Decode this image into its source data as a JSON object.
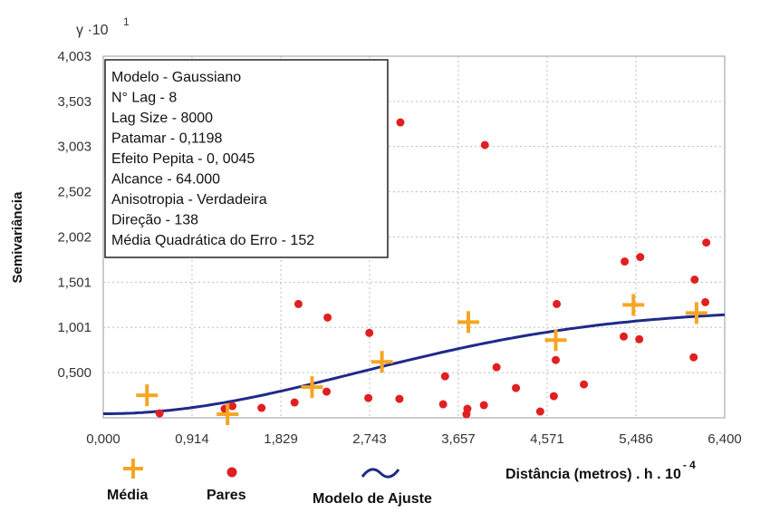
{
  "chart_data": {
    "type": "scatter",
    "ylabel": "Semivariância",
    "y_unit": "γ ·10",
    "y_unit_exp": "1",
    "xlabel": "Distância (metros) . h . 10",
    "x_unit_exp": "- 4",
    "xlim": [
      0,
      6.4
    ],
    "ylim": [
      0,
      4.003
    ],
    "x_ticks": [
      "0,000",
      "0,914",
      "1,829",
      "2,743",
      "3,657",
      "4,571",
      "5,486",
      "6,400"
    ],
    "x_tick_values": [
      0,
      0.914,
      1.829,
      2.743,
      3.657,
      4.571,
      5.486,
      6.4
    ],
    "y_ticks": [
      "0,500",
      "1,001",
      "1,501",
      "2,002",
      "2,502",
      "3,003",
      "3,503",
      "4,003"
    ],
    "y_tick_values": [
      0.5,
      1.001,
      1.501,
      2.002,
      2.502,
      3.003,
      3.503,
      4.003
    ],
    "grid": true,
    "info_box": [
      "Modelo - Gaussiano",
      "N° Lag - 8",
      "Lag Size - 8000",
      "Patamar - 0,1198",
      "Efeito Pepita - 0, 0045",
      "Alcance - 64.000",
      "Anisotropia - Verdadeira",
      "Direção - 138",
      "Média Quadrática do Erro - 152"
    ],
    "legend": [
      {
        "label": "Média",
        "marker": "plus",
        "color": "#f5a623"
      },
      {
        "label": "Pares",
        "marker": "dot",
        "color": "#e02020"
      },
      {
        "label": "Modelo de Ajuste",
        "marker": "wave",
        "color": "#1f2a8a"
      }
    ],
    "series": [
      {
        "name": "Pares",
        "points": [
          [
            0.58,
            0.05
          ],
          [
            1.25,
            0.1
          ],
          [
            1.33,
            0.13
          ],
          [
            1.63,
            0.11
          ],
          [
            1.97,
            0.17
          ],
          [
            2.01,
            1.26
          ],
          [
            2.3,
            0.29
          ],
          [
            2.31,
            1.11
          ],
          [
            2.73,
            0.22
          ],
          [
            2.74,
            0.94
          ],
          [
            3.05,
            0.21
          ],
          [
            3.06,
            3.27
          ],
          [
            3.5,
            0.15
          ],
          [
            3.52,
            0.46
          ],
          [
            3.74,
            0.04
          ],
          [
            3.75,
            0.1
          ],
          [
            3.92,
            0.14
          ],
          [
            3.93,
            3.02
          ],
          [
            4.05,
            0.56
          ],
          [
            4.25,
            0.33
          ],
          [
            4.5,
            0.07
          ],
          [
            4.64,
            0.24
          ],
          [
            4.66,
            0.64
          ],
          [
            4.67,
            1.26
          ],
          [
            4.95,
            0.37
          ],
          [
            5.36,
            0.9
          ],
          [
            5.37,
            1.73
          ],
          [
            5.52,
            0.87
          ],
          [
            5.53,
            1.78
          ],
          [
            6.08,
            0.67
          ],
          [
            6.09,
            1.53
          ],
          [
            6.2,
            1.28
          ],
          [
            6.21,
            1.94
          ]
        ]
      },
      {
        "name": "Média",
        "points": [
          [
            0.45,
            0.25
          ],
          [
            1.28,
            0.04
          ],
          [
            2.15,
            0.34
          ],
          [
            2.87,
            0.62
          ],
          [
            3.76,
            1.06
          ],
          [
            4.66,
            0.86
          ],
          [
            5.46,
            1.25
          ],
          [
            6.11,
            1.16
          ]
        ]
      }
    ],
    "model": {
      "name": "Modelo de Ajuste",
      "type": "gaussian",
      "nugget": 0.045,
      "sill": 1.198,
      "range": 6.4,
      "color": "#1f2a8a"
    },
    "colors": {
      "media": "#f5a623",
      "pares": "#e02020",
      "model": "#1f2a8a",
      "grid": "#bdbdbd"
    }
  }
}
